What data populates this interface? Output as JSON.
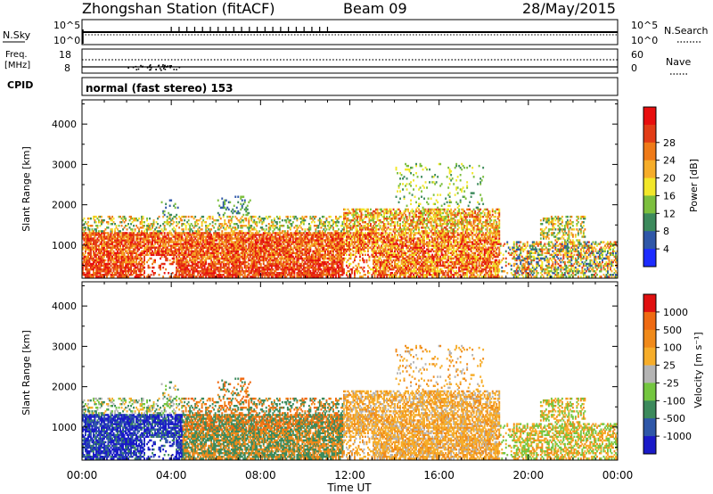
{
  "header": {
    "station": "Zhongshan Station (fitACF)",
    "beam": "Beam 09",
    "date": "28/May/2015"
  },
  "summary_panels": {
    "nsky_label": "N.Sky",
    "nsearch_label": "N.Search",
    "nsky_ticks": [
      "10^5",
      "10^0"
    ],
    "nsearch_ticks": [
      "10^5",
      "10^0"
    ],
    "freq_label_line1": "Freq.",
    "freq_label_line2": "[MHz]",
    "freq_ticks": [
      "18",
      "8"
    ],
    "nave_label": "Nave",
    "nave_ticks": [
      "60",
      "0"
    ],
    "cpid_label": "CPID",
    "cpid_text": "normal (fast stereo) 153"
  },
  "chart_data": [
    {
      "type": "heatmap",
      "panel": "power",
      "ylabel": "Slant Range [km]",
      "xlabel": "",
      "ylim": [
        180,
        4600
      ],
      "yticks": [
        "1000",
        "2000",
        "3000",
        "4000"
      ],
      "colorbar_label": "Power [dB]",
      "colorbar_ticks": [
        "4",
        "8",
        "12",
        "16",
        "20",
        "24",
        "28"
      ],
      "colorbar_colors": [
        "#1d2cff",
        "#2f57a8",
        "#3c8a5c",
        "#7cbf3e",
        "#f2e72a",
        "#f6ad2a",
        "#ef7a18",
        "#e23c16",
        "#e80e0e"
      ],
      "regions": [
        {
          "t": [
            0.0,
            11.6
          ],
          "r": [
            300,
            1300
          ],
          "dominant": "red/orange",
          "note": ""
        },
        {
          "t": [
            12.0,
            18.6
          ],
          "r": [
            400,
            1800
          ],
          "dominant": "red/orange/green",
          "note": ""
        },
        {
          "t": [
            18.6,
            23.9
          ],
          "r": [
            200,
            1100
          ],
          "dominant": "orange/green/blue",
          "note": ""
        }
      ]
    },
    {
      "type": "heatmap",
      "panel": "velocity",
      "ylabel": "Slant Range [km]",
      "xlabel": "Time UT",
      "ylim": [
        180,
        4600
      ],
      "yticks": [
        "1000",
        "2000",
        "3000",
        "4000"
      ],
      "xticks": [
        "00:00",
        "04:00",
        "08:00",
        "12:00",
        "16:00",
        "20:00",
        "00:00"
      ],
      "colorbar_label": "Velocity [m s⁻¹]",
      "colorbar_ticks": [
        "1000",
        "500",
        "100",
        "25",
        "-25",
        "-100",
        "-500",
        "-1000"
      ],
      "colorbar_colors": [
        "#1a1ac8",
        "#2f57a8",
        "#3c8a5c",
        "#74c640",
        "#b4b4b4",
        "#f6ad2a",
        "#f08a1a",
        "#ef6a12",
        "#e01010"
      ],
      "regions": [
        {
          "t": [
            0.0,
            4.5
          ],
          "r": [
            300,
            1300
          ],
          "dominant": "blue/green"
        },
        {
          "t": [
            4.5,
            11.6
          ],
          "r": [
            300,
            1300
          ],
          "dominant": "green/orange"
        },
        {
          "t": [
            12.0,
            18.6
          ],
          "r": [
            300,
            1900
          ],
          "dominant": "orange"
        },
        {
          "t": [
            18.6,
            23.9
          ],
          "r": [
            200,
            1100
          ],
          "dominant": "orange/green"
        }
      ]
    }
  ]
}
